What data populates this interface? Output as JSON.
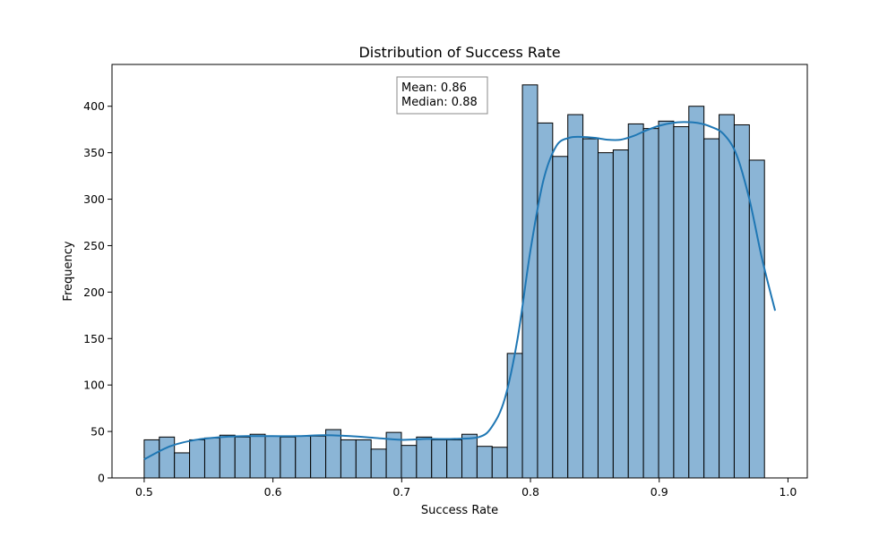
{
  "chart_data": {
    "type": "bar",
    "title": "Distribution of Success Rate",
    "xlabel": "Success Rate",
    "ylabel": "Frequency",
    "xlim": [
      0.475,
      1.015
    ],
    "ylim": [
      0,
      445
    ],
    "x_ticks": [
      0.5,
      0.6,
      0.7,
      0.8,
      0.9,
      1.0
    ],
    "x_tick_labels": [
      "0.5",
      "0.6",
      "0.7",
      "0.8",
      "0.9",
      "1.0"
    ],
    "y_ticks": [
      0,
      50,
      100,
      150,
      200,
      250,
      300,
      350,
      400
    ],
    "y_tick_labels": [
      "0",
      "50",
      "100",
      "150",
      "200",
      "250",
      "300",
      "350",
      "400"
    ],
    "bin_start": 0.5,
    "bin_width": 0.01175,
    "values": [
      41,
      44,
      27,
      41,
      43,
      46,
      44,
      47,
      45,
      44,
      45,
      45,
      52,
      41,
      41,
      31,
      49,
      35,
      44,
      41,
      41,
      47,
      34,
      33,
      134,
      423,
      382,
      346,
      391,
      365,
      350,
      353,
      381,
      376,
      384,
      378,
      400,
      365,
      391,
      380,
      342
    ],
    "kde": {
      "x": [
        0.5,
        0.52,
        0.54,
        0.56,
        0.58,
        0.6,
        0.62,
        0.64,
        0.66,
        0.68,
        0.7,
        0.72,
        0.74,
        0.76,
        0.77,
        0.78,
        0.79,
        0.8,
        0.81,
        0.82,
        0.83,
        0.84,
        0.85,
        0.86,
        0.87,
        0.88,
        0.89,
        0.9,
        0.91,
        0.92,
        0.93,
        0.94,
        0.95,
        0.96,
        0.97,
        0.98,
        0.99
      ],
      "y": [
        20,
        34,
        41,
        44,
        45,
        45,
        45,
        46,
        45,
        43,
        41,
        42,
        42,
        44,
        55,
        85,
        150,
        245,
        320,
        357,
        366,
        367,
        366,
        364,
        364,
        368,
        374,
        379,
        382,
        383,
        382,
        378,
        370,
        348,
        300,
        235,
        180
      ]
    },
    "bar_color": "#8bb5d6",
    "bar_edge_color": "#000000",
    "kde_color": "#1f77b4",
    "grid": false,
    "annotation": {
      "mean_label": "Mean: 0.86",
      "median_label": "Median: 0.88"
    }
  }
}
